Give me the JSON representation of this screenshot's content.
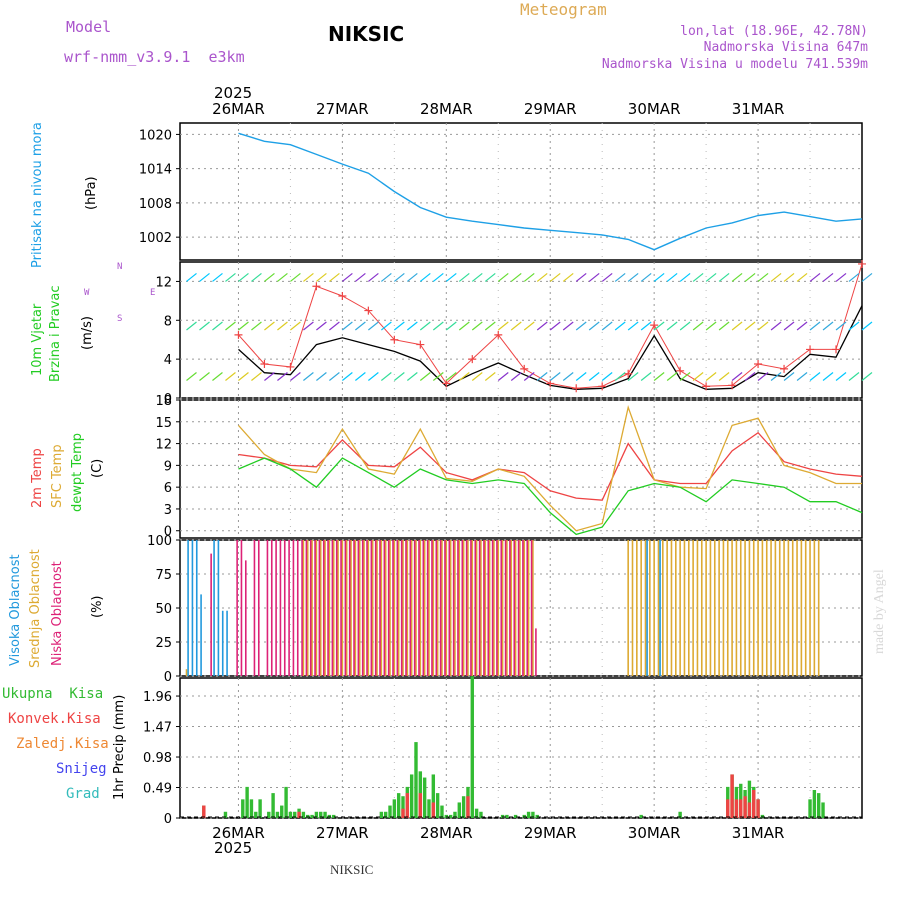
{
  "header": {
    "model_label": "Model",
    "model_name": "wrf-nmm_v3.9.1  e3km",
    "station": "NIKSIC",
    "title": "Meteogram",
    "lonlat": "lon,lat (18.96E, 42.78N)",
    "elevation": "Nadmorska Visina 647m",
    "model_elevation": "Nadmorska Visina u modelu 741.539m",
    "year": "2025",
    "footer_station": "NIKSIC",
    "watermark": "made by Angel"
  },
  "colors": {
    "pressure": "#1ea0e6",
    "wind_title": "#22cc22",
    "t2m": "#ee4444",
    "sfc": "#ddaa33",
    "dewpt": "#22cc22",
    "cloud_high": "#2299dd",
    "cloud_mid": "#ddaa33",
    "cloud_low": "#dd2277",
    "precip_total": "#33bb33",
    "precip_conv": "#ee4444",
    "precip_frozen": "#ee8833",
    "precip_snow": "#4444ee",
    "precip_hail": "#33bbbb",
    "header_purple": "#aa55cc",
    "header_orange": "#ddaa55"
  },
  "chart_data": [
    {
      "id": "pressure",
      "type": "line",
      "ylabel": "Pritisak na nivou mora",
      "unit": "(hPa)",
      "ylim": [
        998,
        1022
      ],
      "yticks": [
        "1002",
        "1008",
        "1014",
        "1020"
      ],
      "xticks": [
        "26MAR",
        "27MAR",
        "28MAR",
        "29MAR",
        "30MAR",
        "31MAR"
      ],
      "x_hours": [
        0,
        6,
        12,
        18,
        24,
        30,
        36,
        42,
        48,
        54,
        60,
        66,
        72,
        78,
        84,
        90,
        96,
        102,
        108,
        114,
        120,
        126,
        132,
        138,
        144
      ],
      "values": [
        1020.2,
        1018.8,
        1018.2,
        1016.5,
        1014.8,
        1013.2,
        1010.0,
        1007.2,
        1005.5,
        1004.8,
        1004.2,
        1003.6,
        1003.2,
        1002.8,
        1002.4,
        1001.6,
        999.8,
        1001.8,
        1003.6,
        1004.5,
        1005.8,
        1006.4,
        1005.6,
        1004.8,
        1005.2
      ]
    },
    {
      "id": "wind",
      "type": "line",
      "ylabel": [
        "10m Vjetar",
        "Brzina i Pravac"
      ],
      "unit": "(m/s)",
      "compass": [
        "N",
        "E",
        "W",
        "S"
      ],
      "ylim": [
        0,
        14
      ],
      "yticks": [
        "0",
        "4",
        "8",
        "12"
      ],
      "x_hours": [
        0,
        6,
        12,
        18,
        24,
        30,
        36,
        42,
        48,
        54,
        60,
        66,
        72,
        78,
        84,
        90,
        96,
        102,
        108,
        114,
        120,
        126,
        132,
        138,
        144
      ],
      "series": [
        {
          "name": "speed",
          "values": [
            5.0,
            2.6,
            2.4,
            5.5,
            6.2,
            5.5,
            4.8,
            3.8,
            1.2,
            2.5,
            3.6,
            2.4,
            1.3,
            0.9,
            1.0,
            2.0,
            6.4,
            2.0,
            0.9,
            1.0,
            2.6,
            2.2,
            4.5,
            4.2,
            9.5
          ]
        },
        {
          "name": "gust",
          "values": [
            6.5,
            3.5,
            3.2,
            11.5,
            10.5,
            9.0,
            6.0,
            5.5,
            1.5,
            4.0,
            6.5,
            3.0,
            1.5,
            1.0,
            1.2,
            2.5,
            7.5,
            2.8,
            1.2,
            1.3,
            3.5,
            3.0,
            5.0,
            5.0,
            13.8
          ]
        }
      ]
    },
    {
      "id": "temperature",
      "type": "line",
      "ylabel": [
        "2m Temp",
        "SFC Temp",
        "dewpt Temp"
      ],
      "unit": "(C)",
      "ylim": [
        -1,
        18
      ],
      "yticks": [
        "0",
        "3",
        "6",
        "9",
        "12",
        "15",
        "18"
      ],
      "x_hours": [
        0,
        6,
        12,
        18,
        24,
        30,
        36,
        42,
        48,
        54,
        60,
        66,
        72,
        78,
        84,
        90,
        96,
        102,
        108,
        114,
        120,
        126,
        132,
        138,
        144
      ],
      "series": [
        {
          "name": "2m Temp",
          "values": [
            10.5,
            10.0,
            9.0,
            8.8,
            12.5,
            9.0,
            8.8,
            11.5,
            8.0,
            7.0,
            8.5,
            8.0,
            5.5,
            4.5,
            4.2,
            12.0,
            7.0,
            6.5,
            6.5,
            11.0,
            13.5,
            9.5,
            8.5,
            7.8,
            7.5
          ]
        },
        {
          "name": "SFC Temp",
          "values": [
            14.5,
            10.5,
            8.5,
            8.0,
            14.0,
            8.5,
            7.8,
            14.0,
            7.2,
            6.8,
            8.5,
            7.5,
            3.5,
            0.0,
            1.0,
            17.0,
            7.0,
            6.0,
            5.8,
            14.5,
            15.5,
            9.0,
            8.0,
            6.5,
            6.5
          ]
        },
        {
          "name": "dewpt Temp",
          "values": [
            8.5,
            10.0,
            8.5,
            6.0,
            10.0,
            8.0,
            6.0,
            8.5,
            7.0,
            6.5,
            7.0,
            6.5,
            2.5,
            -0.5,
            0.5,
            5.5,
            6.5,
            6.0,
            4.0,
            7.0,
            6.5,
            6.0,
            4.0,
            4.0,
            2.5
          ]
        }
      ]
    },
    {
      "id": "cloud",
      "type": "bar",
      "ylabel": [
        "Visoka Oblacnost",
        "Srednja Oblacnost",
        "Niska Oblacnost"
      ],
      "unit": "(%)",
      "ylim": [
        0,
        100
      ],
      "yticks": [
        "0",
        "25",
        "50",
        "75",
        "100"
      ],
      "step_hours": 1,
      "series": [
        {
          "name": "Srednja",
          "values": [
            5,
            0,
            0,
            0,
            0,
            0,
            0,
            0,
            0,
            0,
            0,
            0,
            0,
            0,
            0,
            0,
            0,
            0,
            0,
            0,
            0,
            0,
            0,
            0,
            0,
            0,
            0,
            100,
            100,
            100,
            100,
            100,
            100,
            100,
            100,
            100,
            100,
            100,
            100,
            100,
            100,
            100,
            100,
            100,
            100,
            100,
            100,
            100,
            100,
            100,
            100,
            100,
            100,
            100,
            100,
            100,
            100,
            100,
            100,
            100,
            100,
            100,
            100,
            100,
            100,
            100,
            100,
            100,
            100,
            100,
            100,
            100,
            100,
            100,
            100,
            100,
            100,
            100,
            100,
            100,
            100,
            0,
            0,
            0,
            0,
            0,
            0,
            0,
            0,
            0,
            0,
            0,
            0,
            0,
            0,
            0,
            0,
            0,
            0,
            0,
            0,
            0,
            100,
            100,
            100,
            100,
            100,
            100,
            100,
            100,
            100,
            100,
            100,
            100,
            100,
            100,
            100,
            100,
            100,
            100,
            100,
            100,
            100,
            100,
            100,
            100,
            100,
            100,
            100,
            100,
            100,
            100,
            100,
            100,
            100,
            100,
            100,
            100,
            100,
            100,
            100,
            100,
            100,
            100,
            100,
            100,
            100
          ]
        },
        {
          "name": "Visoka",
          "values": [
            100,
            100,
            100,
            60,
            0,
            0,
            100,
            100,
            48,
            48,
            0,
            0,
            0,
            0,
            0,
            0,
            0,
            0,
            0,
            0,
            0,
            0,
            0,
            0,
            0,
            0,
            0,
            0,
            0,
            0,
            0,
            0,
            0,
            0,
            0,
            0,
            0,
            0,
            0,
            0,
            0,
            0,
            0,
            0,
            0,
            0,
            0,
            0,
            0,
            0,
            0,
            0,
            0,
            0,
            0,
            0,
            0,
            0,
            0,
            0,
            0,
            0,
            0,
            0,
            0,
            0,
            0,
            0,
            0,
            0,
            0,
            0,
            0,
            0,
            0,
            0,
            0,
            0,
            0,
            0,
            0,
            0,
            0,
            0,
            0,
            0,
            0,
            0,
            0,
            0,
            0,
            0,
            0,
            0,
            0,
            0,
            0,
            0,
            0,
            0,
            0,
            0,
            0,
            0,
            0,
            0,
            100,
            0,
            0,
            100,
            0,
            0,
            0,
            0,
            0,
            0,
            0,
            0,
            0,
            0,
            0,
            0,
            0,
            0,
            0,
            0,
            0,
            0,
            0,
            0,
            0,
            0,
            0,
            0,
            0,
            0,
            0,
            0,
            0,
            0,
            0,
            0,
            0,
            0,
            0
          ]
        },
        {
          "name": "Niska",
          "values": [
            0,
            0,
            0,
            0,
            0,
            90,
            0,
            0,
            0,
            0,
            0,
            100,
            100,
            85,
            0,
            100,
            100,
            0,
            100,
            100,
            100,
            100,
            100,
            100,
            100,
            100,
            100,
            100,
            100,
            100,
            100,
            100,
            100,
            100,
            100,
            100,
            100,
            100,
            100,
            100,
            100,
            100,
            100,
            100,
            100,
            100,
            100,
            100,
            100,
            100,
            100,
            100,
            100,
            100,
            100,
            100,
            100,
            100,
            100,
            100,
            100,
            100,
            100,
            100,
            100,
            100,
            100,
            100,
            100,
            100,
            100,
            100,
            100,
            100,
            100,
            100,
            100,
            100,
            100,
            100,
            35,
            0,
            0,
            0,
            0,
            0,
            0,
            0,
            0,
            0,
            0,
            0,
            0,
            0,
            0,
            0,
            0,
            0,
            0,
            0,
            0,
            0,
            0,
            0,
            0,
            0,
            0,
            0,
            0,
            0,
            0,
            0,
            0,
            0,
            0,
            0,
            0,
            0,
            0,
            0,
            0,
            0,
            0,
            0,
            0,
            0,
            0,
            0,
            0,
            0,
            0,
            0,
            0,
            0,
            0,
            0,
            0,
            0,
            0,
            0,
            0,
            0,
            0,
            0,
            0
          ]
        }
      ]
    },
    {
      "id": "precip",
      "type": "bar",
      "ylabel": "1hr Precip",
      "unit": "(mm)",
      "ylim": [
        0,
        2.25
      ],
      "yticks": [
        "0",
        "0.49",
        "0.98",
        "1.47",
        "1.96"
      ],
      "legend": [
        "Ukupna  Kisa",
        "Konvek.Kisa",
        "Zaledj.Kisa",
        "Snijeg",
        "Grad"
      ],
      "step_hours": 1,
      "series": [
        {
          "name": "Ukupna Kisa",
          "values": [
            0,
            0,
            0,
            0,
            0.2,
            0,
            0,
            0,
            0,
            0.1,
            0,
            0,
            0,
            0.3,
            0.5,
            0.3,
            0.1,
            0.3,
            0,
            0.1,
            0.4,
            0.1,
            0.2,
            0.5,
            0.1,
            0.1,
            0.15,
            0.1,
            0.05,
            0.05,
            0.1,
            0.1,
            0.1,
            0.05,
            0.05,
            0,
            0,
            0,
            0,
            0,
            0,
            0,
            0,
            0,
            0,
            0.1,
            0.1,
            0.2,
            0.3,
            0.4,
            0.35,
            0.5,
            0.7,
            1.22,
            0.75,
            0.65,
            0.3,
            0.7,
            0.4,
            0.2,
            0.05,
            0.05,
            0.1,
            0.25,
            0.35,
            0.5,
            2.28,
            0.15,
            0.1,
            0,
            0,
            0,
            0,
            0.05,
            0.05,
            0,
            0.05,
            0,
            0.05,
            0.1,
            0.1,
            0.05,
            0,
            0,
            0,
            0,
            0,
            0,
            0,
            0,
            0,
            0,
            0,
            0,
            0,
            0,
            0,
            0,
            0,
            0,
            0,
            0,
            0,
            0,
            0,
            0.05,
            0,
            0,
            0,
            0,
            0,
            0,
            0,
            0,
            0.1,
            0,
            0,
            0,
            0,
            0,
            0,
            0,
            0,
            0,
            0,
            0.5,
            0.7,
            0.5,
            0.55,
            0.45,
            0.6,
            0.5,
            0.3,
            0.05,
            0,
            0,
            0,
            0,
            0,
            0,
            0,
            0,
            0,
            0,
            0.3,
            0.45,
            0.4,
            0.25,
            0
          ]
        },
        {
          "name": "Konvek.Kisa",
          "values": [
            0,
            0,
            0,
            0,
            0.2,
            0,
            0,
            0,
            0,
            0,
            0,
            0,
            0,
            0,
            0,
            0,
            0,
            0,
            0,
            0,
            0,
            0,
            0,
            0,
            0,
            0,
            0.1,
            0,
            0,
            0,
            0,
            0,
            0,
            0,
            0,
            0,
            0,
            0,
            0,
            0,
            0,
            0,
            0,
            0,
            0,
            0,
            0,
            0,
            0,
            0,
            0.15,
            0.4,
            0,
            0,
            0.4,
            0,
            0,
            0.25,
            0,
            0,
            0,
            0,
            0,
            0,
            0,
            0.35,
            0,
            0,
            0,
            0,
            0,
            0,
            0,
            0,
            0,
            0,
            0,
            0,
            0,
            0,
            0,
            0,
            0,
            0,
            0,
            0,
            0,
            0,
            0,
            0,
            0,
            0,
            0,
            0,
            0,
            0,
            0,
            0,
            0,
            0,
            0,
            0,
            0,
            0,
            0,
            0,
            0,
            0,
            0,
            0,
            0,
            0,
            0,
            0,
            0,
            0,
            0,
            0,
            0,
            0,
            0,
            0,
            0,
            0,
            0,
            0.3,
            0.7,
            0.3,
            0.3,
            0.35,
            0.25,
            0.45,
            0.3,
            0,
            0,
            0,
            0,
            0,
            0,
            0,
            0,
            0,
            0,
            0,
            0,
            0,
            0,
            0,
            0
          ]
        }
      ]
    }
  ]
}
